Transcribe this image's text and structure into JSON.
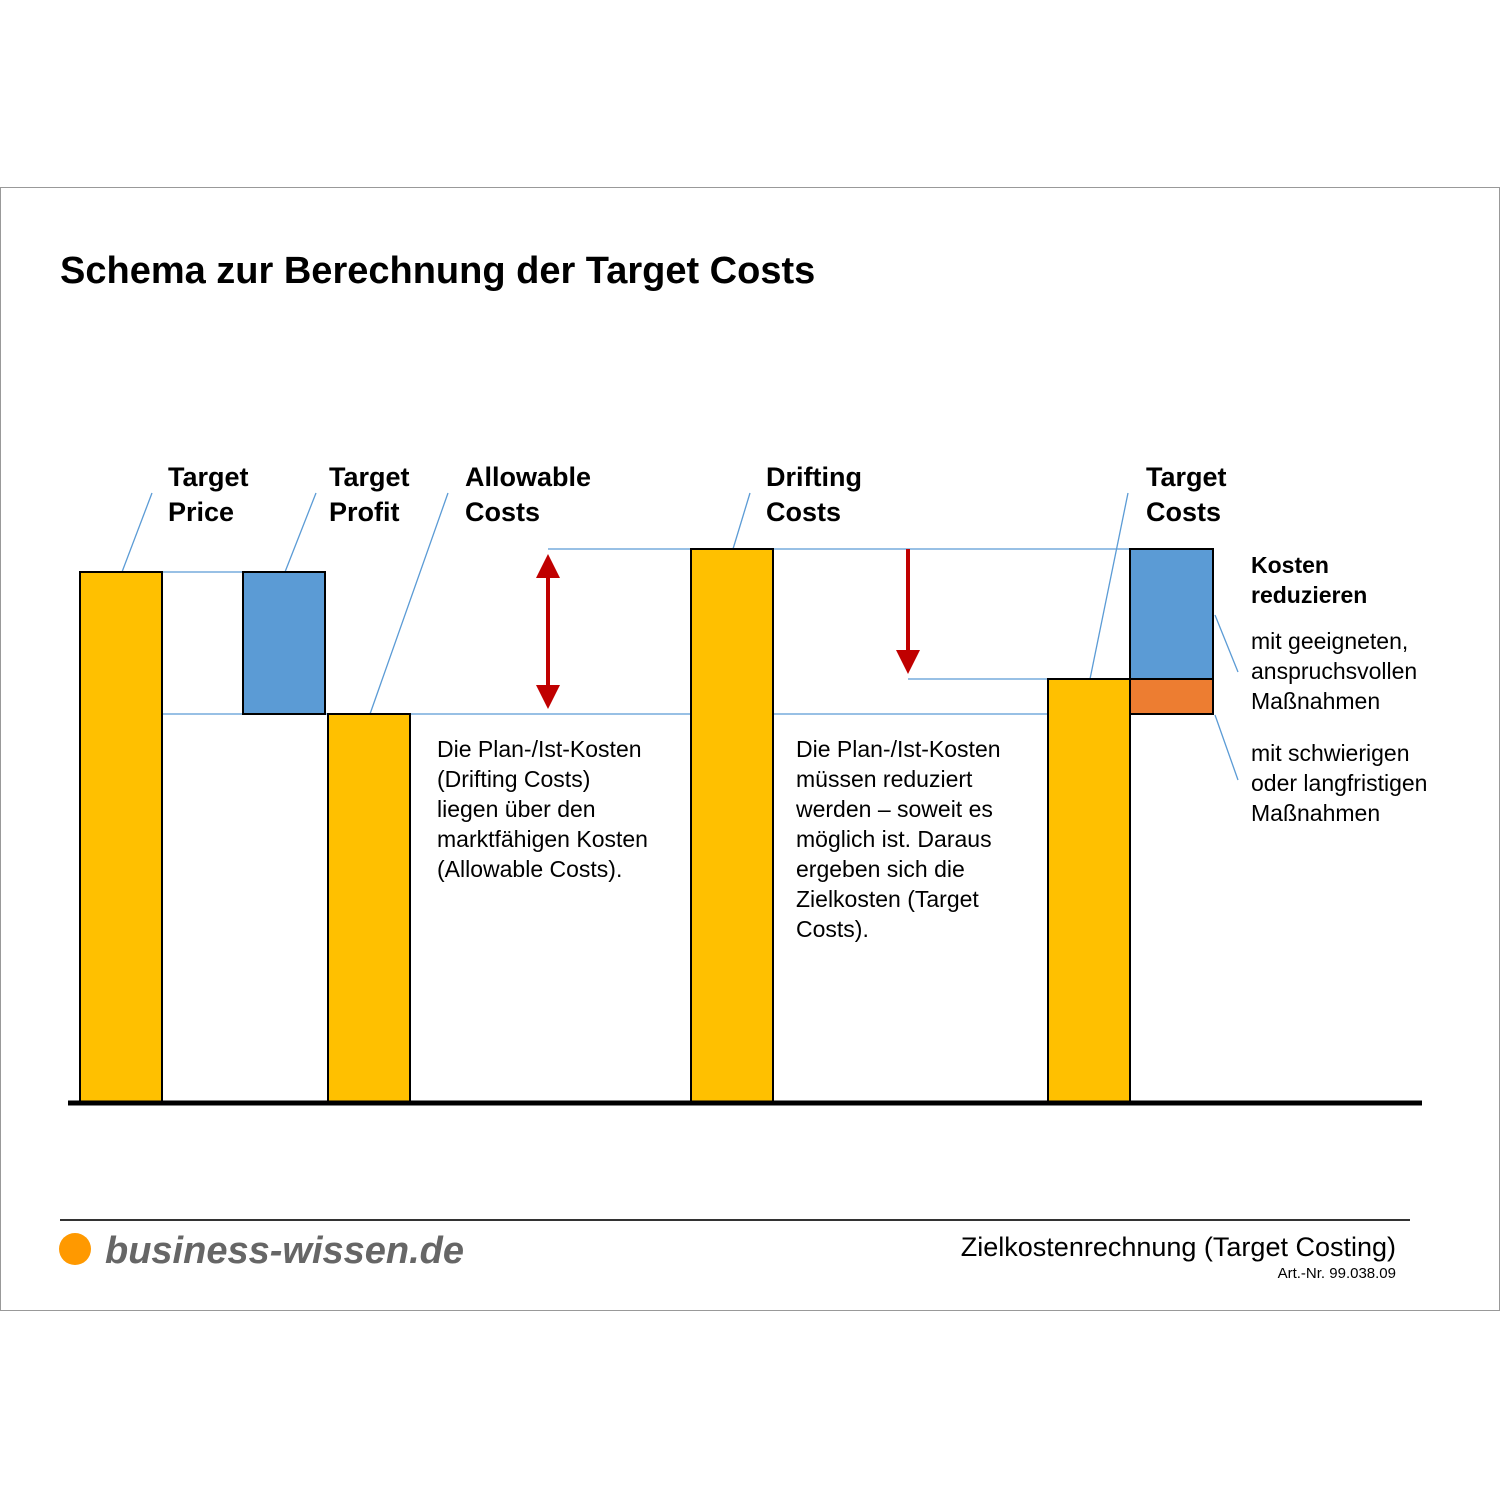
{
  "title": "Schema zur Berechnung der Target Costs",
  "bar_labels": [
    [
      "Target",
      "Price"
    ],
    [
      "Target",
      "Profit"
    ],
    [
      "Allowable",
      "Costs"
    ],
    [
      "Drifting",
      "Costs"
    ],
    [
      "Target",
      "Costs"
    ]
  ],
  "notes": [
    [
      "Die Plan-/Ist-Kosten",
      "(Drifting Costs)",
      "liegen über den",
      "marktfähigen Kosten",
      "(Allowable Costs)."
    ],
    [
      "Die Plan-/Ist-Kosten",
      "müssen reduziert",
      "werden – soweit es",
      "möglich ist. Daraus",
      "ergeben sich die",
      "Zielkosten (Target",
      "Costs)."
    ]
  ],
  "side": {
    "heading": [
      "Kosten",
      "reduzieren"
    ],
    "items": [
      [
        "mit geeigneten,",
        "anspruchsvollen",
        "Maßnahmen"
      ],
      [
        "mit schwierigen",
        "oder langfristigen",
        "Maßnahmen"
      ]
    ]
  },
  "footer": {
    "logo": "business-wissen.de",
    "subject": "Zielkostenrechnung (Target Costing)",
    "article": "Art.-Nr. 99.038.09"
  }
}
